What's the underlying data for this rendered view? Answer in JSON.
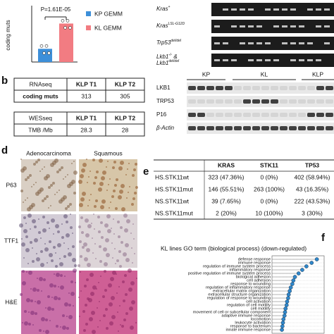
{
  "panel_a": {
    "p_value": "P=1.61E-05",
    "y_label": "coding muts",
    "chart_data": {
      "type": "bar",
      "ylim": [
        0,
        500
      ],
      "series": [
        {
          "name": "KP GEMM",
          "color": "#3d8fd9",
          "values": [
            120
          ]
        },
        {
          "name": "KL GEMM",
          "color": "#f27c82",
          "values": [
            350
          ]
        }
      ]
    }
  },
  "gel": {
    "rows": [
      {
        "gene": "Kras",
        "allele": "+"
      },
      {
        "gene": "Kras",
        "allele": "LSL-G12D"
      },
      {
        "gene": "Trp53",
        "allele": "del/del"
      },
      {
        "gene": "Lkb1",
        "allele": "-/-",
        "joiner": " &",
        "gene2": "Lkb1",
        "allele2": "del/del"
      }
    ]
  },
  "panel_b": {
    "letter": "b",
    "tables": [
      {
        "header": [
          "RNAseq",
          "KLP T1",
          "KLP T2"
        ],
        "row": [
          "coding muts",
          "313",
          "305"
        ]
      },
      {
        "header": [
          "WESseq",
          "KLP T1",
          "KLP T2"
        ],
        "row": [
          "TMB /Mb",
          "28.3",
          "28"
        ]
      }
    ]
  },
  "western": {
    "groups": [
      "KP",
      "KL",
      "KLP"
    ],
    "rows": [
      "LKB1",
      "TRP53",
      "P16",
      "β-Actin"
    ]
  },
  "panel_d": {
    "letter": "d",
    "columns": [
      "Adenocarcinoma",
      "Squamous"
    ],
    "rows": [
      "P63",
      "TTF1",
      "H&E"
    ]
  },
  "panel_e": {
    "letter": "e",
    "header": [
      "KRAS",
      "STK11",
      "TP53"
    ],
    "rows": [
      [
        "HS.STK11wt",
        "323 (47.36%)",
        "0 (0%)",
        "402 (58.94%)"
      ],
      [
        "HS.STK11mut",
        "146 (55.51%)",
        "263 (100%)",
        "43 (16.35%)"
      ],
      [
        "NS.STK11wt",
        "39 (7.65%)",
        "0 (0%)",
        "222 (43.53%)"
      ],
      [
        "NS.STK11mut",
        "2 (20%)",
        "10 (100%)",
        "3 (30%)"
      ]
    ]
  },
  "panel_f": {
    "letter": "f",
    "chart_data": {
      "type": "dot",
      "title": "KL lines GO term (biological process) (down-regulated)",
      "categories": [
        "defense response",
        "immune response",
        "regulation of immune system process",
        "inflammatory response",
        "positive regulation of immune system process",
        "biological adhesion",
        "cell adhesion",
        "response to wounding",
        "regulation of inflammatory response",
        "extracellular matrix organization",
        "extracellular structure organization",
        "regulation of response to wounding",
        "cell activation",
        "regulation of cell motility",
        "cell motility",
        "movement of cell or subcellular component",
        "adaptive immune response",
        "locomotion",
        "leukocyte activation",
        "response to bacterium",
        "innate immune response"
      ],
      "values": [
        8.6,
        7.6,
        6.6,
        5.8,
        5.1,
        4.4,
        4.1,
        3.9,
        3.6,
        3.4,
        3.2,
        3.1,
        2.9,
        2.8,
        2.6,
        2.5,
        2.4,
        2.2,
        2.1,
        2.0,
        1.9
      ],
      "xlim": [
        0,
        10
      ],
      "color": "#2f86c9"
    }
  }
}
